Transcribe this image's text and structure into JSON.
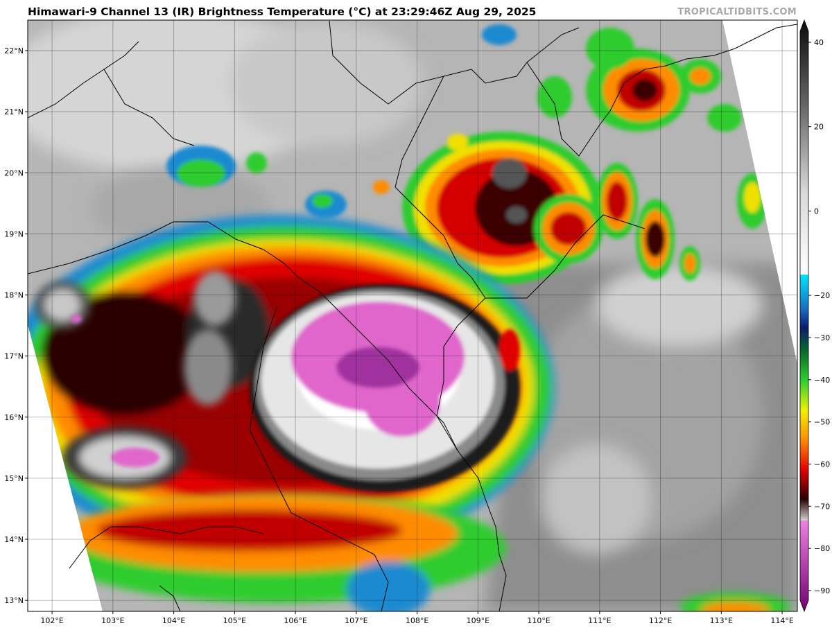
{
  "header": {
    "title": "Himawari-9 Channel 13 (IR) Brightness Temperature (°C) at 23:29:46Z Aug 29, 2025",
    "credit": "TROPICALTIDBITS.COM"
  },
  "map": {
    "lon_range": [
      101.6,
      114.25
    ],
    "lat_range": [
      12.82,
      22.5
    ],
    "lat_ticks": [
      "13°N",
      "14°N",
      "15°N",
      "16°N",
      "17°N",
      "18°N",
      "19°N",
      "20°N",
      "21°N",
      "22°N"
    ],
    "lat_values": [
      13,
      14,
      15,
      16,
      17,
      18,
      19,
      20,
      21,
      22
    ],
    "lon_ticks": [
      "102°E",
      "103°E",
      "104°E",
      "105°E",
      "106°E",
      "107°E",
      "108°E",
      "109°E",
      "110°E",
      "111°E",
      "112°E",
      "113°E",
      "114°E"
    ],
    "lon_values": [
      102,
      103,
      104,
      105,
      106,
      107,
      108,
      109,
      110,
      111,
      112,
      113,
      114
    ],
    "grid": true
  },
  "colorbar": {
    "min": -90,
    "max": 40,
    "tick_labels": [
      "40",
      "20",
      "0",
      "−20",
      "−30",
      "−40",
      "−50",
      "−60",
      "−70",
      "−80",
      "−90"
    ],
    "tick_values": [
      40,
      20,
      0,
      -20,
      -30,
      -40,
      -50,
      -60,
      -70,
      -80,
      -90
    ],
    "colors": {
      "warm_dark": "#1a1a1a",
      "gray_mid": "#888888",
      "light": "#f5f5f5",
      "cyan": "#00e5ff",
      "navy": "#1a1a80",
      "green": "#2ecc2e",
      "yellow": "#f2f200",
      "orange": "#ff8c00",
      "red": "#e60000",
      "dark_red": "#3b0000",
      "magenta": "#e066cc",
      "purple": "#800080"
    }
  }
}
